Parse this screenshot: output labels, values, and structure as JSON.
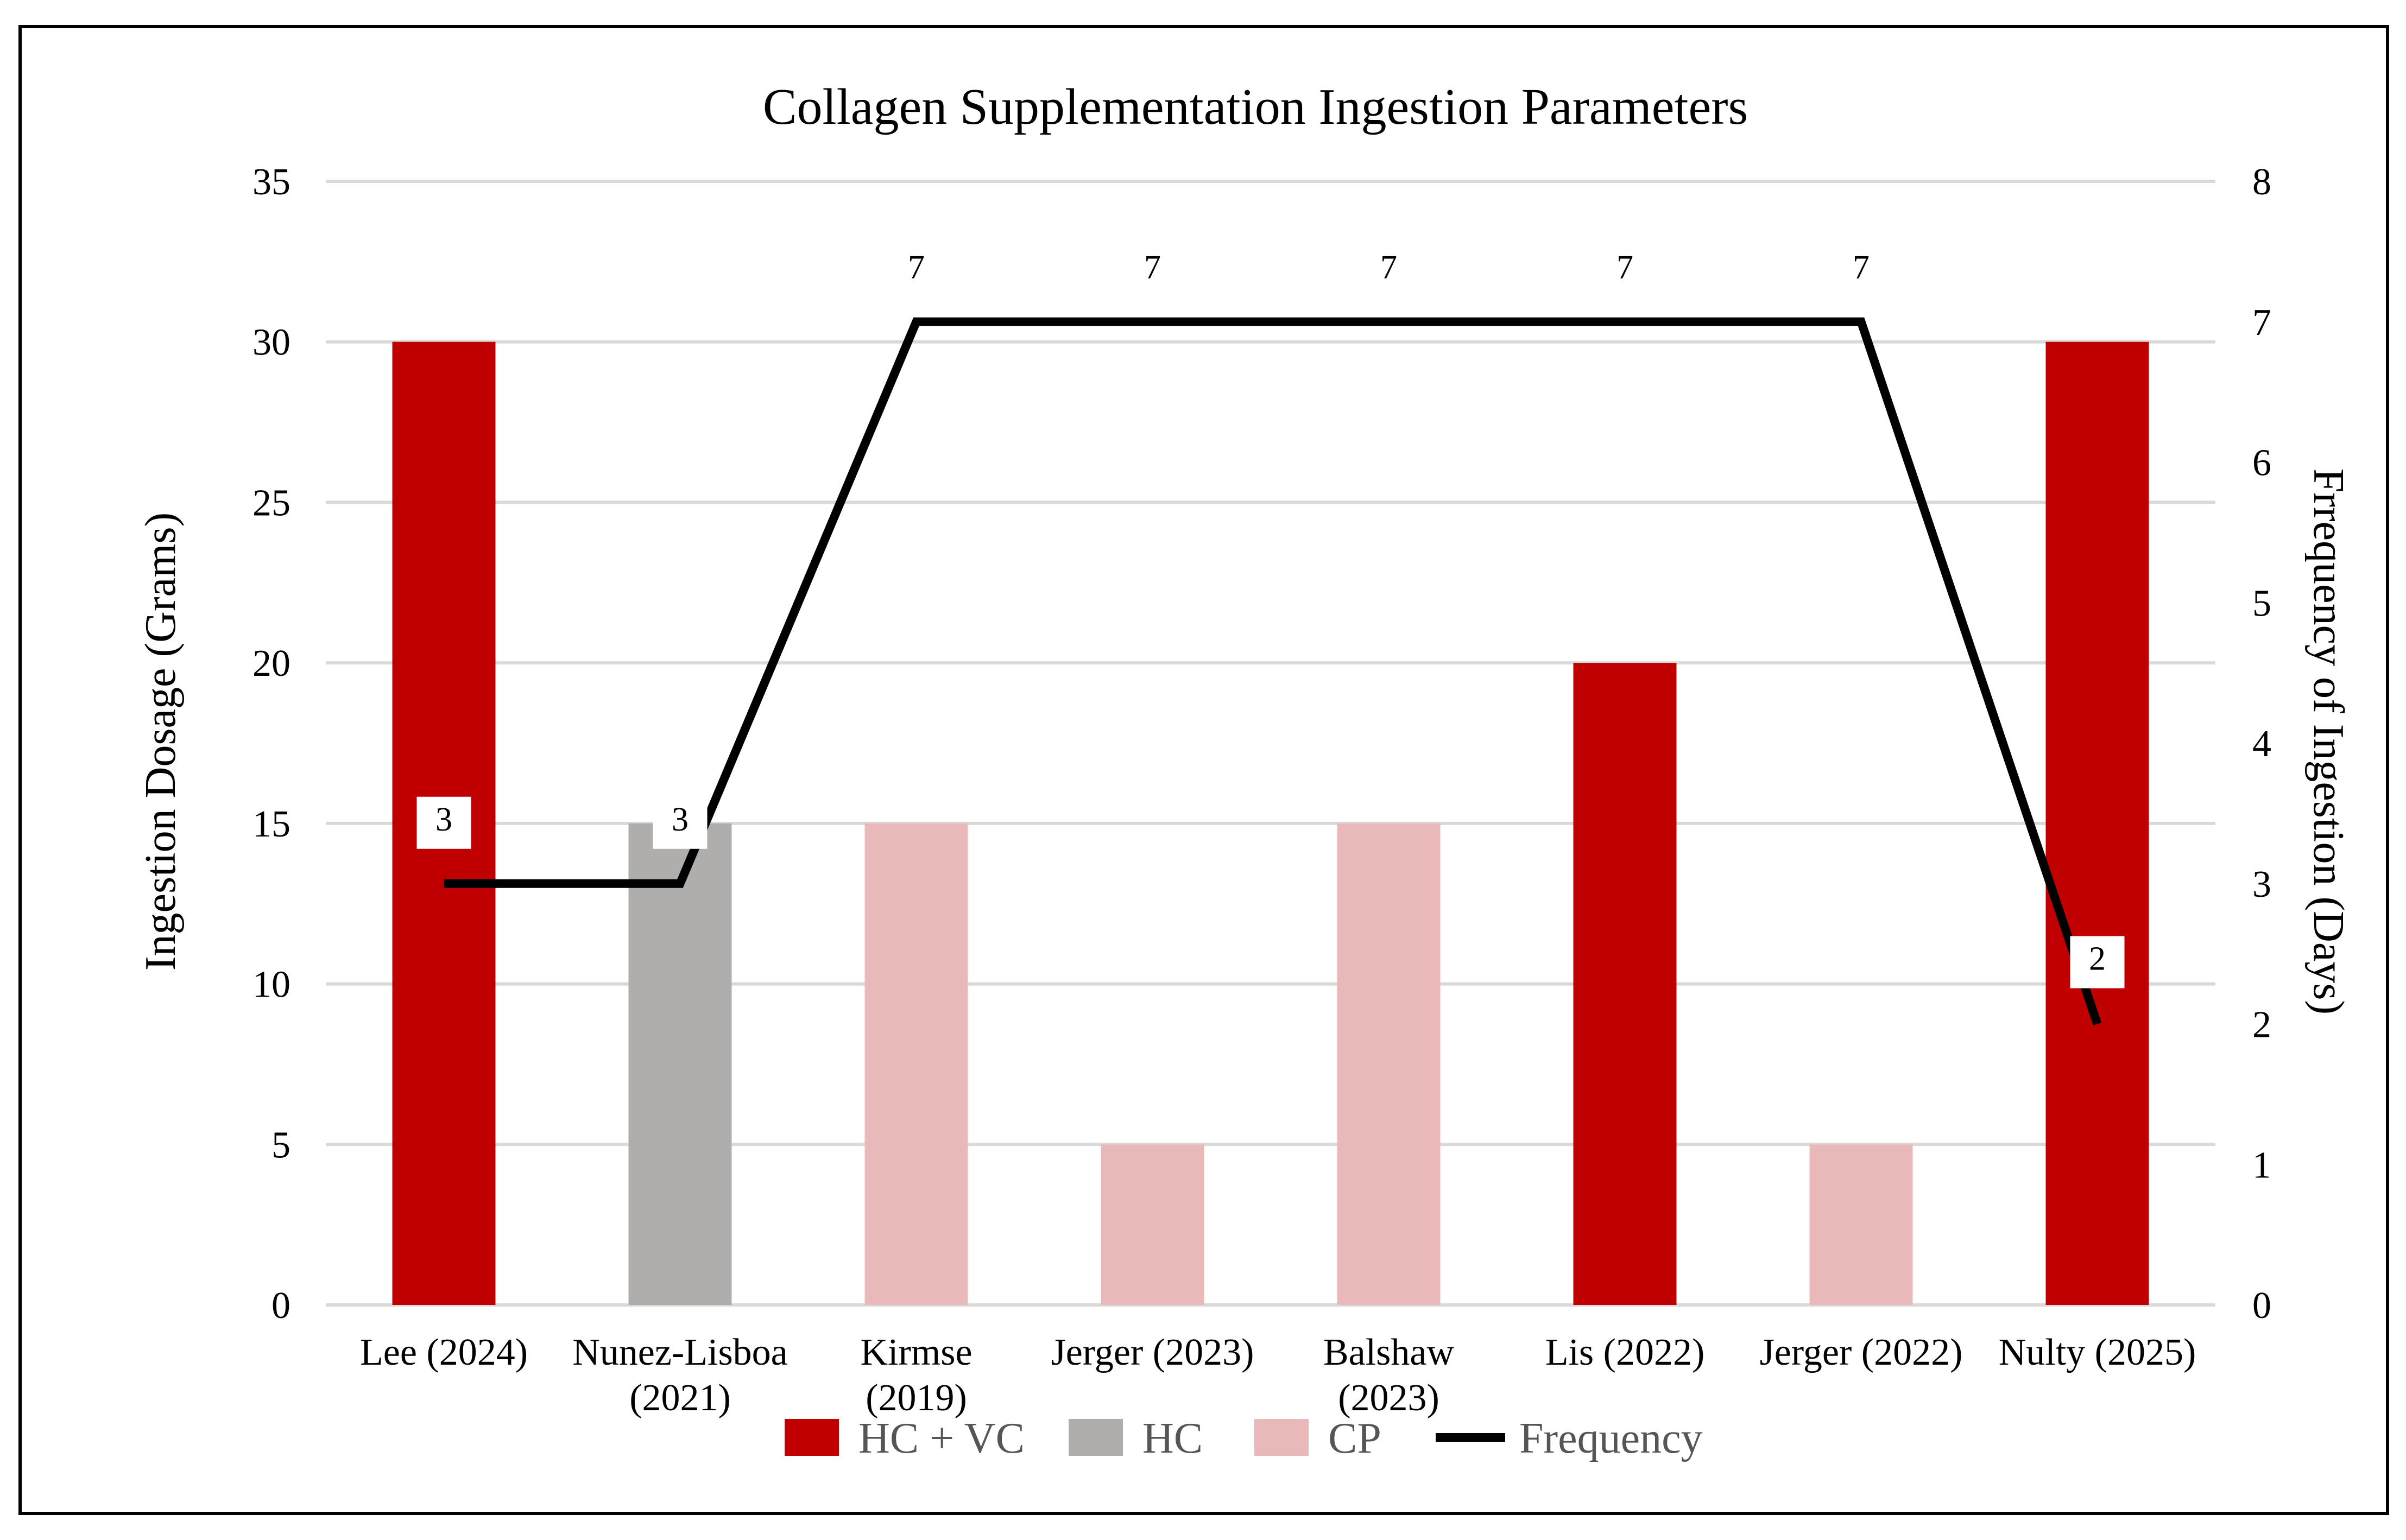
{
  "chart_data": {
    "type": "bar",
    "title": "Collagen Supplementation Ingestion Parameters",
    "ylabel": "Ingestion Dosage (Grams)",
    "y2label": "Frrequency of Ingestion (Days)",
    "ylim": [
      0,
      35
    ],
    "y2lim": [
      0,
      8
    ],
    "yticks": [
      0,
      5,
      10,
      15,
      20,
      25,
      30,
      35
    ],
    "y2ticks": [
      0,
      1,
      2,
      3,
      4,
      5,
      6,
      7,
      8
    ],
    "grid": true,
    "legend_position": "bottom",
    "categories": [
      [
        "Lee (2024)"
      ],
      [
        "Nunez-Lisboa",
        "(2021)"
      ],
      [
        "Kirmse",
        "(2019)"
      ],
      [
        "Jerger (2023)"
      ],
      [
        "Balshaw",
        "(2023)"
      ],
      [
        "Lis (2022)"
      ],
      [
        "Jerger (2022)"
      ],
      [
        "Nulty (2025)"
      ]
    ],
    "bars": [
      {
        "value": 30,
        "group": "HC + VC"
      },
      {
        "value": 15,
        "group": "HC"
      },
      {
        "value": 15,
        "group": "CP"
      },
      {
        "value": 5,
        "group": "CP"
      },
      {
        "value": 15,
        "group": "CP"
      },
      {
        "value": 20,
        "group": "HC + VC"
      },
      {
        "value": 5,
        "group": "CP"
      },
      {
        "value": 30,
        "group": "HC + VC"
      }
    ],
    "line": {
      "name": "Frequency",
      "axis": "right",
      "values": [
        3,
        3,
        7,
        7,
        7,
        7,
        7,
        2
      ],
      "color": "#000000"
    },
    "legend": [
      {
        "label": "HC + VC",
        "color": "#c00000",
        "kind": "bar"
      },
      {
        "label": "HC",
        "color": "#b0aeac",
        "kind": "bar"
      },
      {
        "label": "CP",
        "color": "#e8b9b8",
        "kind": "bar"
      },
      {
        "label": "Frequency",
        "color": "#000000",
        "kind": "line"
      }
    ],
    "colors": {
      "HC + VC": "#c00000",
      "HC": "#b0aeac",
      "CP": "#e8b9b8"
    }
  }
}
